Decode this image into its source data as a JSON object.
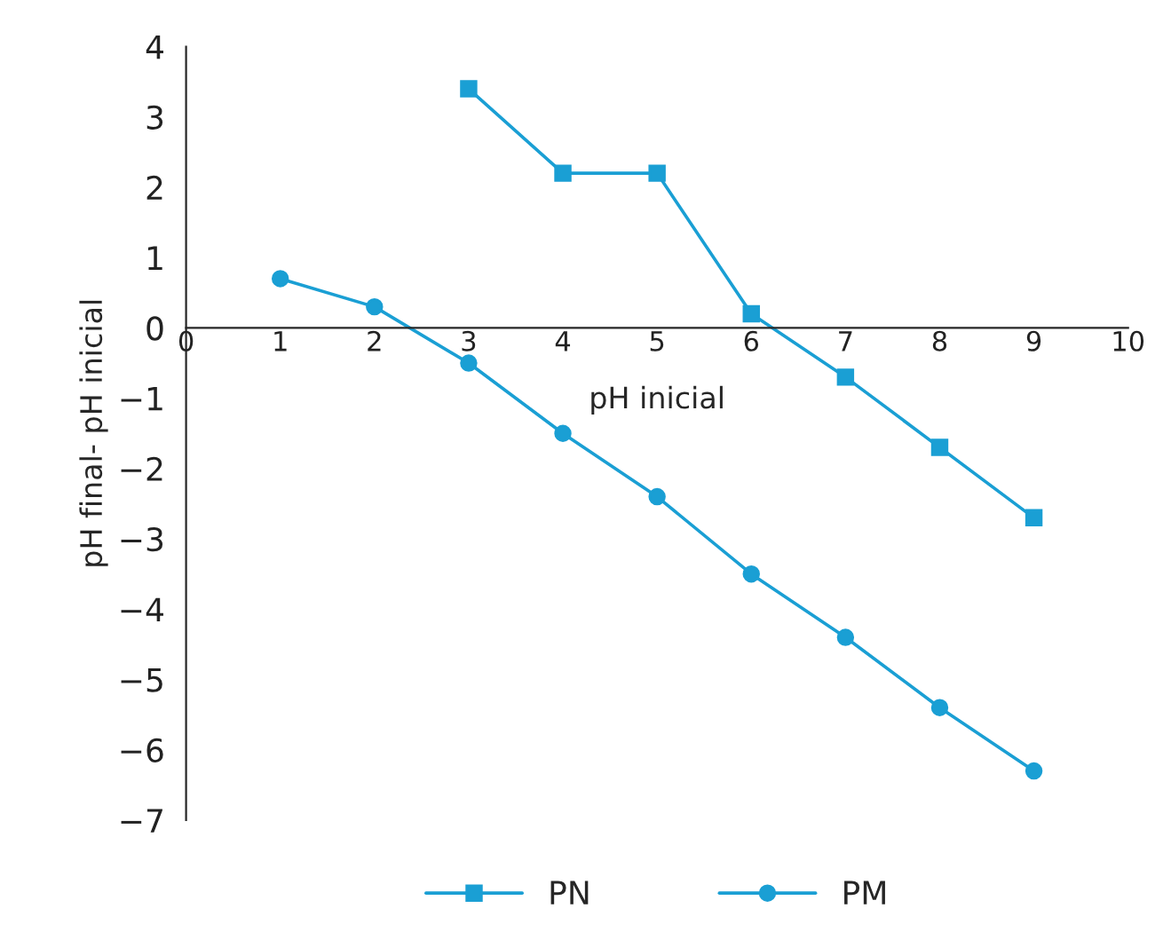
{
  "chart_data": {
    "type": "line",
    "xlabel": "pH inicial",
    "ylabel": "pH final- pH inicial",
    "x": [
      1,
      2,
      3,
      4,
      5,
      6,
      7,
      8,
      9
    ],
    "series": [
      {
        "name": "PN",
        "color": "#1a9fd4",
        "marker": "square",
        "values": [
          null,
          null,
          3.4,
          2.2,
          2.2,
          0.2,
          -0.7,
          -1.7,
          -2.7
        ]
      },
      {
        "name": "PM",
        "color": "#1a9fd4",
        "marker": "circle",
        "values": [
          0.7,
          0.3,
          -0.5,
          -1.5,
          -2.4,
          -3.5,
          -4.4,
          -5.4,
          -6.3
        ]
      }
    ],
    "xlim": [
      0,
      10
    ],
    "xticks": [
      0,
      1,
      2,
      3,
      4,
      5,
      6,
      7,
      8,
      9,
      10
    ],
    "ylim": [
      -7,
      4
    ],
    "yticks": [
      -7,
      -6,
      -5,
      -4,
      -3,
      -2,
      -1,
      0,
      1,
      2,
      3,
      4
    ],
    "grid": false,
    "legend": "bottom",
    "line_style": "solid"
  }
}
